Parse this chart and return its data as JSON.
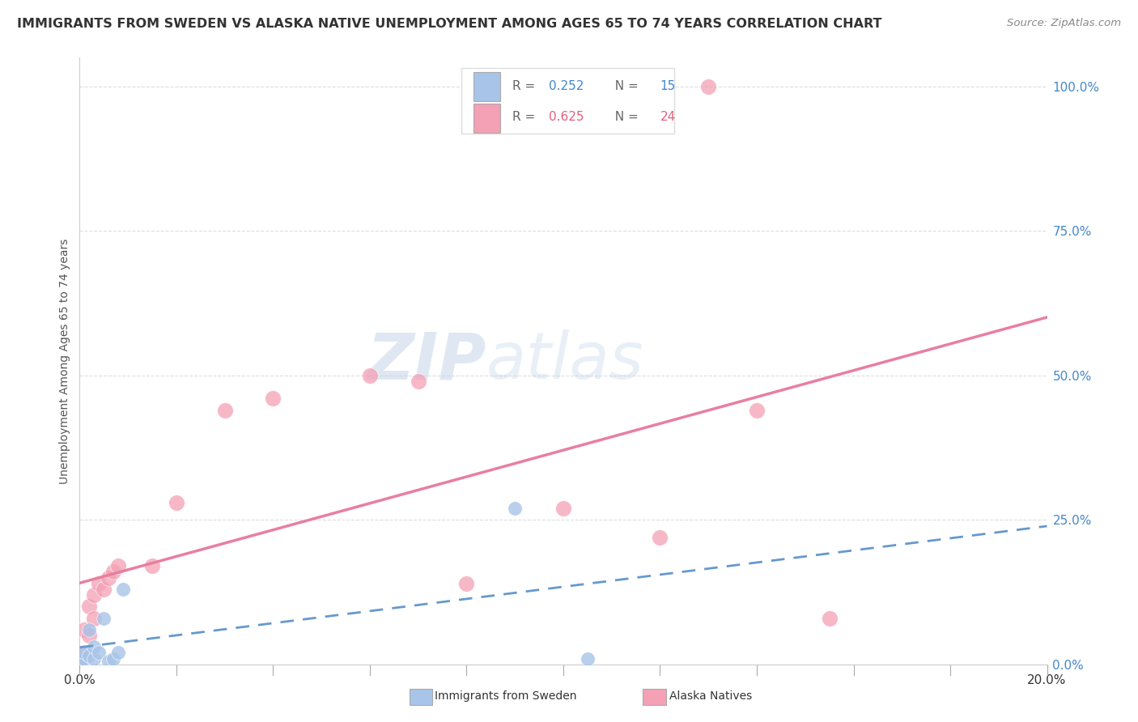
{
  "title": "IMMIGRANTS FROM SWEDEN VS ALASKA NATIVE UNEMPLOYMENT AMONG AGES 65 TO 74 YEARS CORRELATION CHART",
  "source": "Source: ZipAtlas.com",
  "ylabel": "Unemployment Among Ages 65 to 74 years",
  "xlim": [
    0.0,
    0.2
  ],
  "ylim": [
    0.0,
    1.05
  ],
  "ytick_labels": [
    "0.0%",
    "25.0%",
    "50.0%",
    "75.0%",
    "100.0%"
  ],
  "ytick_vals": [
    0.0,
    0.25,
    0.5,
    0.75,
    1.0
  ],
  "legend1_r": "0.252",
  "legend1_n": "15",
  "legend2_r": "0.625",
  "legend2_n": "24",
  "sweden_color": "#a8c4e8",
  "alaska_color": "#f4a0b5",
  "sweden_line_color": "#6699cc",
  "alaska_line_color": "#e87fa0",
  "watermark_zip": "ZIP",
  "watermark_atlas": "atlas",
  "sweden_x": [
    0.0,
    0.001,
    0.001,
    0.002,
    0.002,
    0.003,
    0.003,
    0.004,
    0.005,
    0.006,
    0.007,
    0.008,
    0.009,
    0.09,
    0.105
  ],
  "sweden_y": [
    0.005,
    0.01,
    0.02,
    0.015,
    0.06,
    0.01,
    0.03,
    0.02,
    0.08,
    0.005,
    0.01,
    0.02,
    0.13,
    0.27,
    0.01
  ],
  "alaska_x": [
    0.0,
    0.001,
    0.001,
    0.002,
    0.002,
    0.003,
    0.003,
    0.004,
    0.005,
    0.006,
    0.007,
    0.008,
    0.015,
    0.02,
    0.03,
    0.04,
    0.06,
    0.07,
    0.08,
    0.1,
    0.12,
    0.13,
    0.14,
    0.155
  ],
  "alaska_y": [
    0.01,
    0.02,
    0.06,
    0.05,
    0.1,
    0.08,
    0.12,
    0.14,
    0.13,
    0.15,
    0.16,
    0.17,
    0.17,
    0.28,
    0.44,
    0.46,
    0.5,
    0.49,
    0.14,
    0.27,
    0.22,
    1.0,
    0.44,
    0.08
  ],
  "grid_color": "#dddddd",
  "spine_color": "#cccccc",
  "title_color": "#333333",
  "source_color": "#888888",
  "ylabel_color": "#555555",
  "ytick_color": "#4488cc",
  "xtick_color": "#333333",
  "legend_box_color": "#dddddd",
  "legend_r_color_sweden": "#4488cc",
  "legend_r_color_alaska": "#e06080",
  "legend_n_color_sweden": "#4488cc",
  "legend_n_color_alaska": "#e06080"
}
